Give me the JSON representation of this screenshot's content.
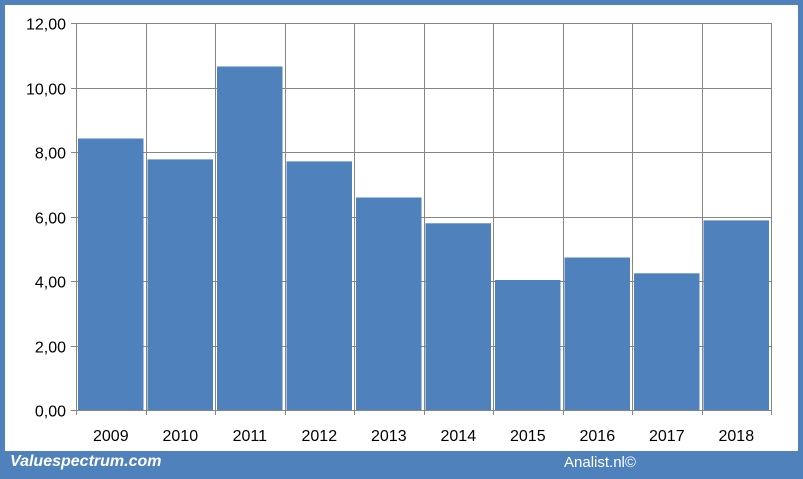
{
  "chart_data": {
    "type": "bar",
    "categories": [
      "2009",
      "2010",
      "2011",
      "2012",
      "2013",
      "2014",
      "2015",
      "2016",
      "2017",
      "2018"
    ],
    "values": [
      8.42,
      7.77,
      10.65,
      7.71,
      6.59,
      5.79,
      4.03,
      4.73,
      4.24,
      5.88
    ],
    "title": "",
    "xlabel": "",
    "ylabel": "",
    "ylim": [
      0,
      12
    ],
    "yticks": [
      0,
      2,
      4,
      6,
      8,
      10,
      12
    ],
    "ytick_labels": [
      "0,00",
      "2,00",
      "4,00",
      "6,00",
      "8,00",
      "10,00",
      "12,00"
    ],
    "grid": "vertical and horizontal",
    "bar_color": "#4f81bd"
  },
  "footer": {
    "left": "Valuespectrum.com",
    "right": "Analist.nl©"
  },
  "colors": {
    "frame": "#4f81bd",
    "grid": "#868686"
  }
}
